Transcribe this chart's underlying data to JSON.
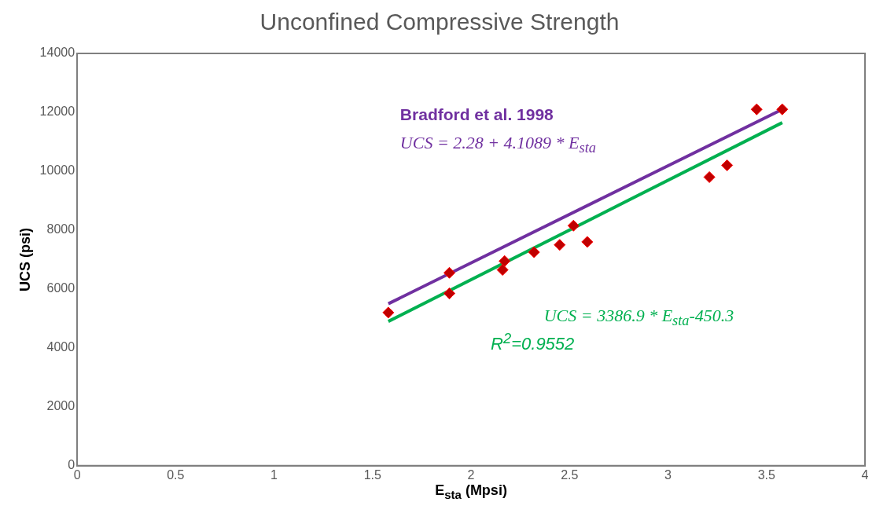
{
  "chart_data": {
    "type": "scatter",
    "title": "Unconfined Compressive Strength",
    "xlabel": "E$_{sta}$ (Mpsi)",
    "ylabel": "UCS (psi)",
    "series": [
      {
        "color": "#c00000",
        "marker": "diamond",
        "x": [
          1.58,
          1.89,
          1.89,
          2.17,
          2.16,
          2.32,
          2.45,
          2.52,
          2.59,
          3.21,
          3.3,
          3.45,
          3.58
        ],
        "values": [
          5200,
          6550,
          5850,
          6950,
          6650,
          7250,
          7500,
          8150,
          7600,
          9800,
          10200,
          12100,
          12100
        ]
      },
      {
        "type": "line",
        "color": "#7030a0",
        "marker": "none",
        "x": [
          1.58,
          3.58
        ],
        "values": [
          5500,
          12100
        ]
      },
      {
        "type": "line",
        "color": "#00b050",
        "marker": "none",
        "x": [
          1.58,
          3.58
        ],
        "values": [
          4900,
          11650
        ]
      }
    ],
    "xlim": [
      0,
      4
    ],
    "xticks": [
      0,
      0.5,
      1,
      1.5,
      2,
      2.5,
      3,
      3.5,
      4
    ],
    "ylim": [
      0,
      14000
    ],
    "yticks": [
      0,
      2000,
      4000,
      6000,
      8000,
      10000,
      12000,
      14000
    ],
    "grid": false,
    "legend": false,
    "annotations": [
      "Bradford et al. 1998",
      "UCS = 2.28 + 4.1089 * E$_{sta}$",
      "UCS = 3386.9 * E$_{sta}$-450.3",
      "R$^{2}$=0.9552"
    ]
  }
}
